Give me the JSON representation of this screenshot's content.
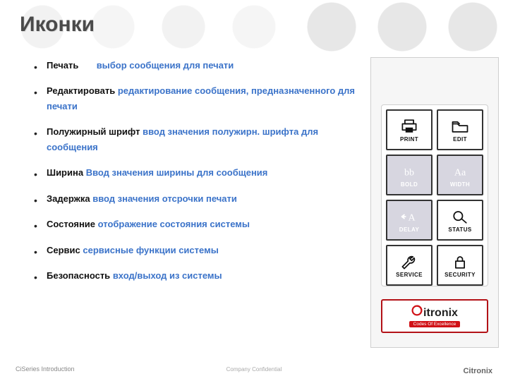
{
  "title": "Иконки",
  "accent_color": "#3b73c9",
  "brand_red": "#d01217",
  "bullets": [
    {
      "label": "Печать",
      "desc": "выбор сообщения для печати",
      "gap": "long"
    },
    {
      "label": "Редактировать",
      "desc": "редактирование сообщения, предназначенного для печати"
    },
    {
      "label": "Полужирный шрифт",
      "desc": "ввод значения полужирн. шрифта для сообщения"
    },
    {
      "label": "Ширина",
      "desc": "Ввод значения ширины для сообщения"
    },
    {
      "label": "Задержка",
      "desc": "ввод значения отсрочки печати"
    },
    {
      "label": "Состояние",
      "desc": "отображение состояния системы"
    },
    {
      "label": "Сервис",
      "desc": "сервисные функции системы"
    },
    {
      "label": "Безопасность",
      "desc": "вход/выход из системы"
    }
  ],
  "panel": {
    "tiles": [
      {
        "caption": "PRINT",
        "name": "print-tile",
        "icon": "printer",
        "style": "white"
      },
      {
        "caption": "EDIT",
        "name": "edit-tile",
        "icon": "folder",
        "style": "white"
      },
      {
        "caption": "BOLD",
        "name": "bold-tile",
        "icon": "bb",
        "style": "grey"
      },
      {
        "caption": "WIDTH",
        "name": "width-tile",
        "icon": "Aa",
        "style": "grey"
      },
      {
        "caption": "DELAY",
        "name": "delay-tile",
        "icon": "delayA",
        "style": "grey"
      },
      {
        "caption": "STATUS",
        "name": "status-tile",
        "icon": "magnify",
        "style": "white"
      },
      {
        "caption": "SERVICE",
        "name": "service-tile",
        "icon": "wrench",
        "style": "white"
      },
      {
        "caption": "SECURITY",
        "name": "security-tile",
        "icon": "lock",
        "style": "white"
      }
    ]
  },
  "brand": {
    "name_lead": "C",
    "name_rest": "itronix",
    "tagline": "Codes Of Excellence"
  },
  "footer": {
    "left": "CiSeries Introduction",
    "center": "Company Confidential",
    "right": "Citronix"
  }
}
